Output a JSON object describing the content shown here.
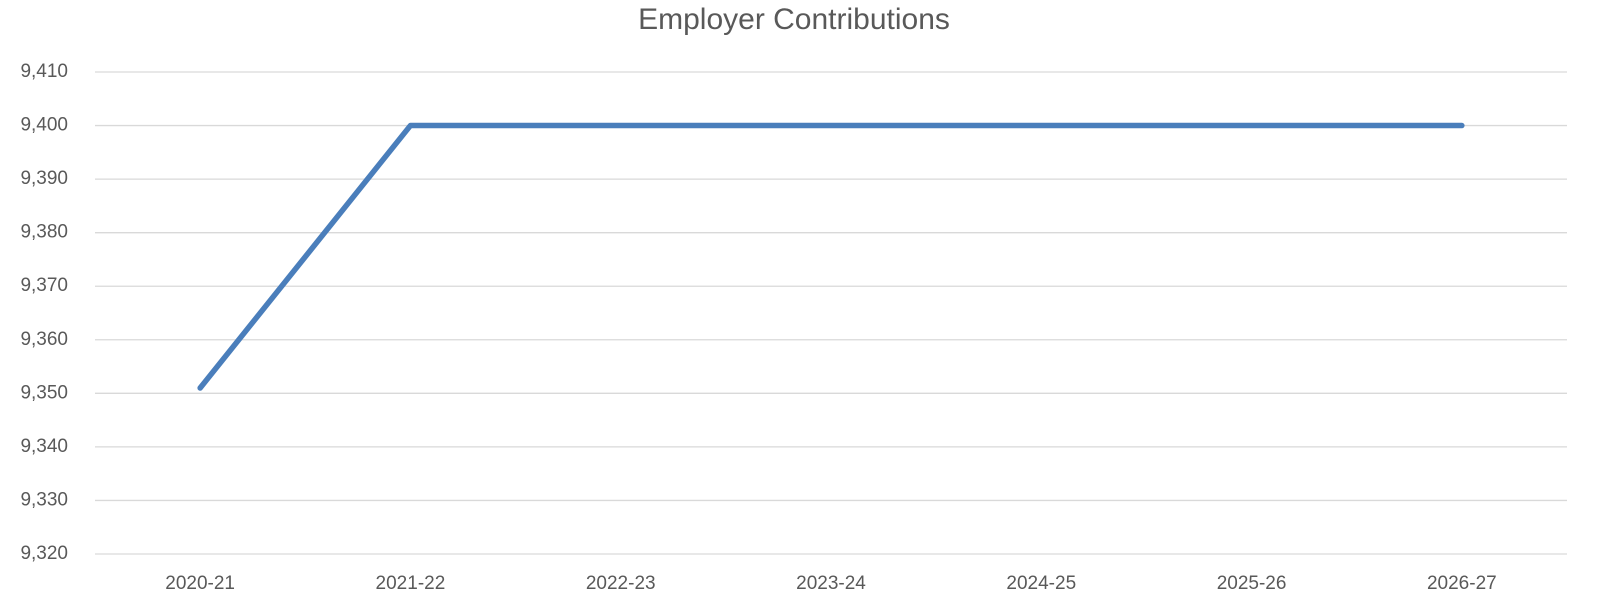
{
  "chart_data": {
    "type": "line",
    "title": "Employer Contributions",
    "categories": [
      "2020-21",
      "2021-22",
      "2022-23",
      "2023-24",
      "2024-25",
      "2025-26",
      "2026-27"
    ],
    "series": [
      {
        "name": "Employer Contributions",
        "color": "#4a7ebb",
        "values": [
          9351,
          9400,
          9400,
          9400,
          9400,
          9400,
          9400
        ]
      }
    ],
    "ylim": [
      9320,
      9410
    ],
    "yticks": [
      {
        "value": 9320,
        "label": "9,320"
      },
      {
        "value": 9330,
        "label": "9,330"
      },
      {
        "value": 9340,
        "label": "9,340"
      },
      {
        "value": 9350,
        "label": "9,350"
      },
      {
        "value": 9360,
        "label": "9,360"
      },
      {
        "value": 9370,
        "label": "9,370"
      },
      {
        "value": 9380,
        "label": "9,380"
      },
      {
        "value": 9390,
        "label": "9,390"
      },
      {
        "value": 9400,
        "label": "9,400"
      },
      {
        "value": 9410,
        "label": "9,410"
      }
    ],
    "grid": true
  }
}
